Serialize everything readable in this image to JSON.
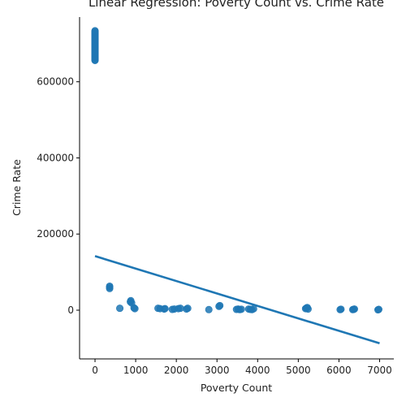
{
  "chart_data": {
    "type": "scatter",
    "title": "Linear Regression: Poverty Count vs. Crime Rate",
    "xlabel": "Poverty Count",
    "ylabel": "Crime Rate",
    "xlim": [
      -380,
      7350
    ],
    "ylim": [
      -128000,
      770000
    ],
    "xticks": [
      0,
      1000,
      2000,
      3000,
      4000,
      5000,
      6000,
      7000
    ],
    "yticks": [
      0,
      200000,
      400000,
      600000
    ],
    "xtick_labels": [
      "0",
      "1000",
      "2000",
      "3000",
      "4000",
      "5000",
      "6000",
      "7000"
    ],
    "ytick_labels": [
      "0",
      "200000",
      "400000",
      "600000"
    ],
    "grid": false,
    "legend": "none",
    "series": [
      {
        "kind": "points",
        "color": "#1f77b4",
        "x": [
          0,
          0,
          0,
          0,
          0,
          0,
          0,
          0,
          0,
          0,
          0,
          0,
          0,
          0,
          0,
          0,
          0,
          0,
          0,
          0,
          0,
          0,
          0,
          0,
          0,
          0,
          0,
          0,
          0,
          0,
          0,
          0,
          0,
          0,
          0,
          0,
          0,
          0,
          0,
          0,
          360,
          360,
          360,
          610,
          870,
          880,
          900,
          960,
          980,
          1550,
          1600,
          1700,
          1720,
          1900,
          1950,
          2050,
          2100,
          2250,
          2280,
          2800,
          3050,
          3070,
          3480,
          3520,
          3560,
          3600,
          3780,
          3820,
          3860,
          3900,
          5180,
          5200,
          5220,
          5240,
          6030,
          6050,
          6340,
          6360,
          6380,
          6960,
          6980
        ],
        "y": [
          660000,
          662000,
          664000,
          666000,
          668000,
          670000,
          672000,
          674000,
          676000,
          678000,
          680000,
          682000,
          684000,
          686000,
          688000,
          690000,
          692000,
          694000,
          696000,
          698000,
          700000,
          702000,
          704000,
          706000,
          708000,
          710000,
          712000,
          714000,
          716000,
          718000,
          720000,
          722000,
          724000,
          726000,
          728000,
          730000,
          732000,
          656000,
          658000,
          734000,
          57000,
          60000,
          63000,
          5000,
          22000,
          25000,
          19000,
          6000,
          4000,
          5000,
          4000,
          3000,
          4000,
          2000,
          3000,
          4000,
          5000,
          3000,
          5000,
          1500,
          10000,
          12000,
          2000,
          3000,
          1500,
          2500,
          3000,
          2000,
          1500,
          3500,
          4000,
          5500,
          7000,
          3000,
          1500,
          2500,
          1500,
          2000,
          3000,
          1000,
          2000
        ]
      },
      {
        "kind": "regression-line",
        "color": "#1f77b4",
        "x": [
          0,
          7000
        ],
        "y": [
          142000,
          -87000
        ]
      }
    ]
  }
}
